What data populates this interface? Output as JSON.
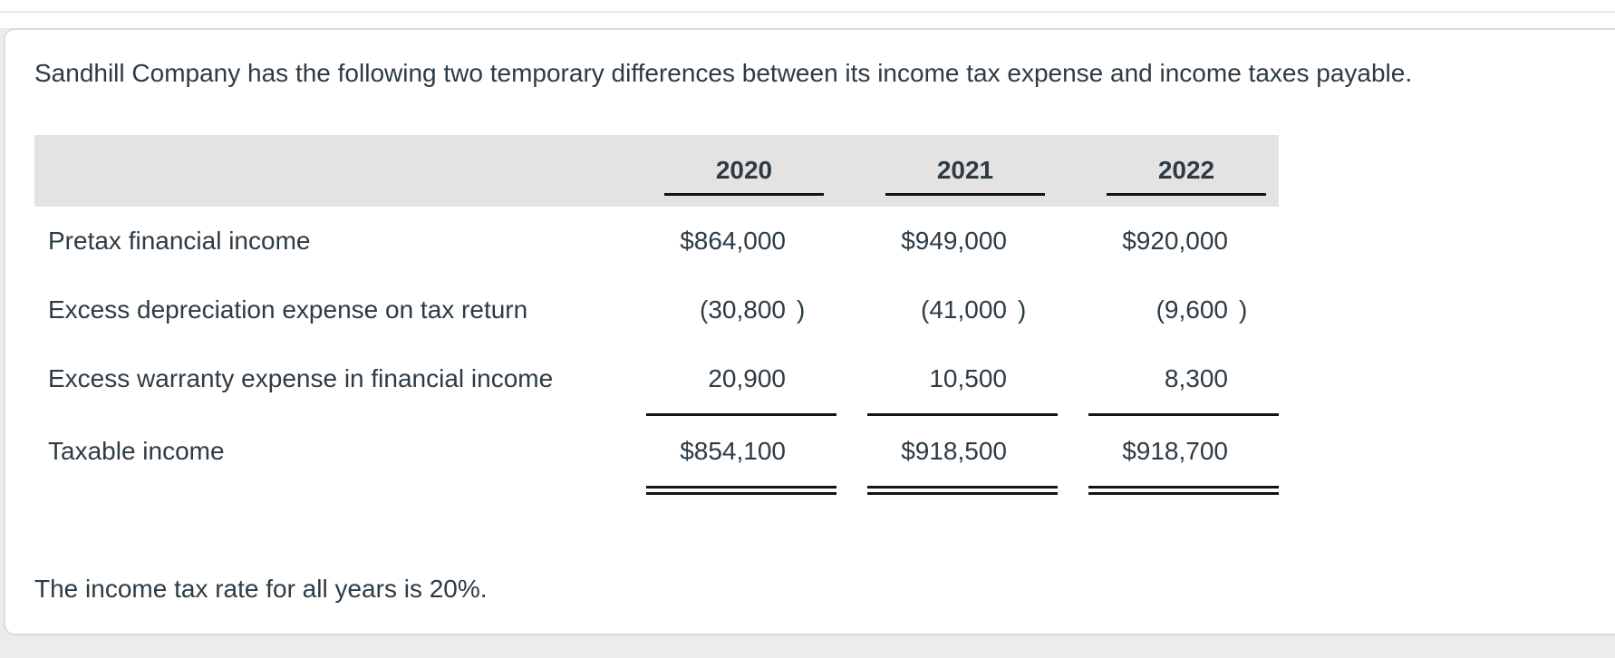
{
  "intro": "Sandhill Company has the following two temporary differences between its income tax expense and income taxes payable.",
  "footnote": "The income tax rate for all years is 20%.",
  "table": {
    "columns": [
      "2020",
      "2021",
      "2022"
    ],
    "rows": [
      {
        "label": "Pretax financial income",
        "cells": [
          {
            "a": "$864,000",
            "p": ""
          },
          {
            "a": "$949,000",
            "p": ""
          },
          {
            "a": "$920,000",
            "p": ""
          }
        ]
      },
      {
        "label": "Excess depreciation expense on tax return",
        "cells": [
          {
            "a": "(30,800",
            "p": ")"
          },
          {
            "a": "(41,000",
            "p": ")"
          },
          {
            "a": "(9,600",
            "p": ")"
          }
        ]
      },
      {
        "label": "Excess warranty expense in financial income",
        "cells": [
          {
            "a": "20,900",
            "p": ""
          },
          {
            "a": "10,500",
            "p": ""
          },
          {
            "a": "8,300",
            "p": ""
          }
        ]
      },
      {
        "label": "Taxable income",
        "cells": [
          {
            "a": "$854,100",
            "p": ""
          },
          {
            "a": "$918,500",
            "p": ""
          },
          {
            "a": "$918,700",
            "p": ""
          }
        ]
      }
    ]
  },
  "colors": {
    "text": "#2d3b45",
    "header_band": "#e3e3e3",
    "rule": "#141414",
    "card_border": "#dbdbdb",
    "page_background": "#ececec"
  }
}
